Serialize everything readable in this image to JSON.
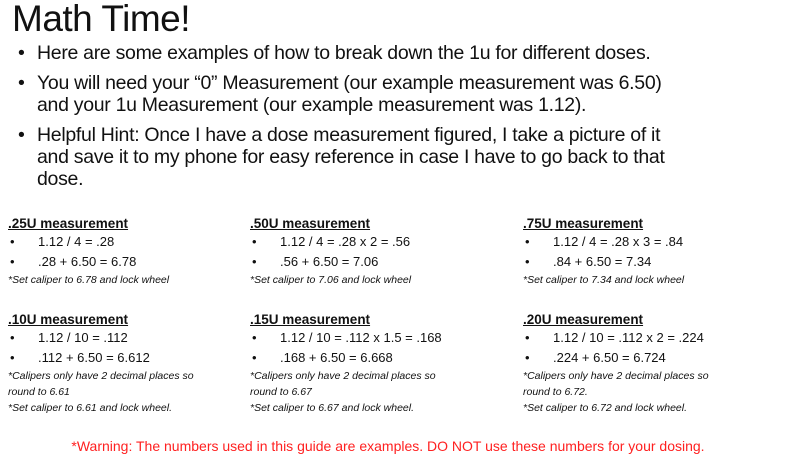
{
  "title": "Math Time!",
  "bullets": [
    {
      "lines": [
        "Here are some examples of how to break down the 1u for different doses."
      ]
    },
    {
      "lines": [
        "You will need your “0” Measurement (our example measurement was 6.50)",
        "and your 1u Measurement (our example measurement was 1.12)."
      ]
    },
    {
      "lines": [
        "Helpful Hint: Once I have a dose measurement figured, I take a picture of it",
        "and save it to my phone for easy reference in case I have to go back to that",
        "dose."
      ]
    }
  ],
  "boxes": [
    {
      "heading": ".25U measurement",
      "items": [
        "1.12 / 4 = .28",
        ".28 + 6.50 = 6.78"
      ],
      "notes": [
        "*Set caliper to 6.78 and lock wheel"
      ]
    },
    {
      "heading": ".50U measurement",
      "items": [
        "1.12 / 4 = .28 x 2 = .56",
        ".56 + 6.50 = 7.06"
      ],
      "notes": [
        "*Set caliper to 7.06 and lock wheel"
      ]
    },
    {
      "heading": ".75U measurement",
      "items": [
        "1.12 / 4 = .28 x 3 = .84",
        ".84 + 6.50 = 7.34"
      ],
      "notes": [
        "*Set caliper to 7.34 and lock wheel"
      ]
    },
    {
      "heading": ".10U measurement",
      "items": [
        "1.12 / 10 = .112",
        ".112 + 6.50 = 6.612"
      ],
      "notes": [
        "*Calipers only have 2 decimal places so",
        "round to 6.61",
        "*Set caliper to 6.61 and lock wheel."
      ]
    },
    {
      "heading": ".15U measurement",
      "items": [
        "1.12 / 10 = .112 x 1.5 = .168",
        ".168 + 6.50 = 6.668"
      ],
      "notes": [
        "*Calipers only have 2 decimal places so",
        "round to 6.67",
        "*Set caliper to 6.67 and lock wheel."
      ]
    },
    {
      "heading": ".20U measurement",
      "items": [
        "1.12 / 10 = .112 x 2 = .224",
        ".224 + 6.50 = 6.724"
      ],
      "notes": [
        "*Calipers only have 2 decimal places so",
        "round to 6.72.",
        "*Set caliper to 6.72 and lock wheel."
      ]
    }
  ],
  "warning": "*Warning: The numbers used in this guide are examples. DO NOT use these numbers for your dosing.",
  "colors": {
    "warning": "#ff2020"
  }
}
